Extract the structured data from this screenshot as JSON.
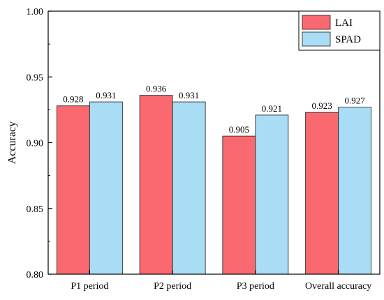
{
  "chart_data": {
    "type": "bar",
    "title": "",
    "xlabel": "",
    "ylabel": "Accuracy",
    "ylim": [
      0.8,
      1.0
    ],
    "yticks": [
      "0.80",
      "0.85",
      "0.90",
      "0.95",
      "1.00"
    ],
    "categories": [
      "P1 period",
      "P2 period",
      "P3 period",
      "Overall accuracy"
    ],
    "series": [
      {
        "name": "LAI",
        "color": "#f9696f",
        "values": [
          0.928,
          0.936,
          0.905,
          0.923
        ],
        "labels": [
          "0.928",
          "0.936",
          "0.905",
          "0.923"
        ]
      },
      {
        "name": "SPAD",
        "color": "#a9dcf5",
        "values": [
          0.931,
          0.931,
          0.921,
          0.927
        ],
        "labels": [
          "0.931",
          "0.931",
          "0.921",
          "0.927"
        ]
      }
    ],
    "legend": {
      "position": "top-right"
    },
    "grid": false
  }
}
